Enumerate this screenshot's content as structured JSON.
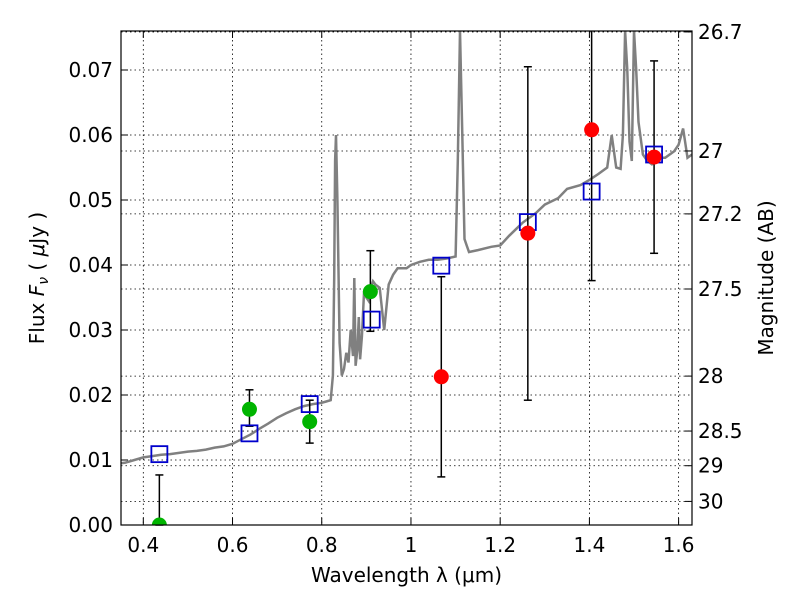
{
  "chart_data": {
    "type": "scatter",
    "xlabel": "Wavelength  λ (μm)",
    "ylabel_parts": [
      "Flux  ",
      "F",
      "ν",
      "  ( ",
      "μ",
      "Jy )"
    ],
    "ylabel_right": "Magnitude (AB)",
    "xlim": [
      0.35,
      1.63
    ],
    "ylim": [
      0.0,
      0.076
    ],
    "grid": true,
    "x_ticks": [
      {
        "value": 0.4,
        "label": "0.4"
      },
      {
        "value": 0.6,
        "label": "0.6"
      },
      {
        "value": 0.8,
        "label": "0.8"
      },
      {
        "value": 1.0,
        "label": "1"
      },
      {
        "value": 1.2,
        "label": "1.2"
      },
      {
        "value": 1.4,
        "label": "1.4"
      },
      {
        "value": 1.6,
        "label": "1.6"
      }
    ],
    "y_ticks": [
      {
        "value": 0.0,
        "label": "0.00"
      },
      {
        "value": 0.01,
        "label": "0.01"
      },
      {
        "value": 0.02,
        "label": "0.02"
      },
      {
        "value": 0.03,
        "label": "0.03"
      },
      {
        "value": 0.04,
        "label": "0.04"
      },
      {
        "value": 0.05,
        "label": "0.05"
      },
      {
        "value": 0.06,
        "label": "0.06"
      },
      {
        "value": 0.07,
        "label": "0.07"
      }
    ],
    "right_ticks": [
      {
        "mag": 26.7,
        "label": "26.7"
      },
      {
        "mag": 27.0,
        "label": "27"
      },
      {
        "mag": 27.2,
        "label": "27.2"
      },
      {
        "mag": 27.5,
        "label": "27.5"
      },
      {
        "mag": 28.0,
        "label": "28"
      },
      {
        "mag": 28.5,
        "label": "28.5"
      },
      {
        "mag": 29.0,
        "label": "29"
      },
      {
        "mag": 30.0,
        "label": "30"
      }
    ],
    "model_spectrum": {
      "color": "#808080",
      "x": [
        0.35,
        0.36,
        0.38,
        0.4,
        0.42,
        0.44,
        0.46,
        0.48,
        0.5,
        0.52,
        0.54,
        0.56,
        0.58,
        0.6,
        0.62,
        0.64,
        0.66,
        0.68,
        0.7,
        0.72,
        0.74,
        0.76,
        0.78,
        0.8,
        0.81,
        0.82,
        0.825,
        0.828,
        0.83,
        0.832,
        0.835,
        0.84,
        0.845,
        0.85,
        0.855,
        0.86,
        0.865,
        0.87,
        0.873,
        0.876,
        0.88,
        0.883,
        0.886,
        0.89,
        0.895,
        0.9,
        0.905,
        0.91,
        0.915,
        0.92,
        0.93,
        0.94,
        0.95,
        0.96,
        0.97,
        0.98,
        0.99,
        1.0,
        1.02,
        1.04,
        1.06,
        1.08,
        1.1,
        1.105,
        1.11,
        1.115,
        1.12,
        1.125,
        1.13,
        1.15,
        1.18,
        1.2,
        1.22,
        1.25,
        1.28,
        1.3,
        1.33,
        1.35,
        1.38,
        1.4,
        1.42,
        1.44,
        1.45,
        1.46,
        1.47,
        1.475,
        1.48,
        1.485,
        1.49,
        1.495,
        1.5,
        1.505,
        1.51,
        1.52,
        1.53,
        1.54,
        1.55,
        1.56,
        1.57,
        1.58,
        1.59,
        1.6,
        1.61,
        1.62,
        1.63
      ],
      "y": [
        0.0095,
        0.0096,
        0.01,
        0.0104,
        0.0106,
        0.0108,
        0.0109,
        0.0111,
        0.0113,
        0.0114,
        0.0116,
        0.0119,
        0.0121,
        0.0125,
        0.0132,
        0.0139,
        0.0148,
        0.0156,
        0.0165,
        0.0172,
        0.0178,
        0.0183,
        0.0186,
        0.0188,
        0.019,
        0.0192,
        0.023,
        0.038,
        0.056,
        0.06,
        0.05,
        0.028,
        0.023,
        0.024,
        0.0265,
        0.025,
        0.03,
        0.026,
        0.038,
        0.0245,
        0.027,
        0.032,
        0.0255,
        0.029,
        0.036,
        0.035,
        0.0345,
        0.0365,
        0.0375,
        0.037,
        0.0365,
        0.03,
        0.037,
        0.0385,
        0.0395,
        0.0395,
        0.0395,
        0.04,
        0.0405,
        0.0408,
        0.0408,
        0.041,
        0.0413,
        0.056,
        0.076,
        0.06,
        0.044,
        0.043,
        0.042,
        0.0423,
        0.0428,
        0.043,
        0.0445,
        0.0465,
        0.048,
        0.0493,
        0.0503,
        0.0517,
        0.0523,
        0.0531,
        0.054,
        0.055,
        0.06,
        0.055,
        0.0548,
        0.06,
        0.076,
        0.07,
        0.059,
        0.056,
        0.076,
        0.07,
        0.062,
        0.057,
        0.056,
        0.0555,
        0.056,
        0.0565,
        0.0565,
        0.057,
        0.0575,
        0.0585,
        0.061,
        0.0565,
        0.057
      ]
    },
    "model_points": {
      "color": "#0000cc",
      "x": [
        0.436,
        0.638,
        0.773,
        0.912,
        1.068,
        1.262,
        1.405,
        1.545
      ],
      "y": [
        0.0109,
        0.0141,
        0.0186,
        0.0316,
        0.0399,
        0.0466,
        0.0513,
        0.057
      ]
    },
    "observed_green": {
      "color": "#00b400",
      "x": [
        0.436,
        0.638,
        0.773,
        0.909
      ],
      "y": [
        0.0,
        0.0178,
        0.0159,
        0.0359
      ],
      "err_low": [
        0.0,
        0.0152,
        0.0126,
        0.0298
      ],
      "err_high": [
        0.0077,
        0.0208,
        0.0192,
        0.0422
      ]
    },
    "observed_red": {
      "color": "#ff0000",
      "x": [
        1.068,
        1.262,
        1.405,
        1.545
      ],
      "y": [
        0.0228,
        0.0449,
        0.0608,
        0.0566
      ],
      "err_low": [
        0.0074,
        0.0192,
        0.0376,
        0.0418
      ],
      "err_high": [
        0.0382,
        0.0705,
        0.076,
        0.0714
      ]
    }
  }
}
